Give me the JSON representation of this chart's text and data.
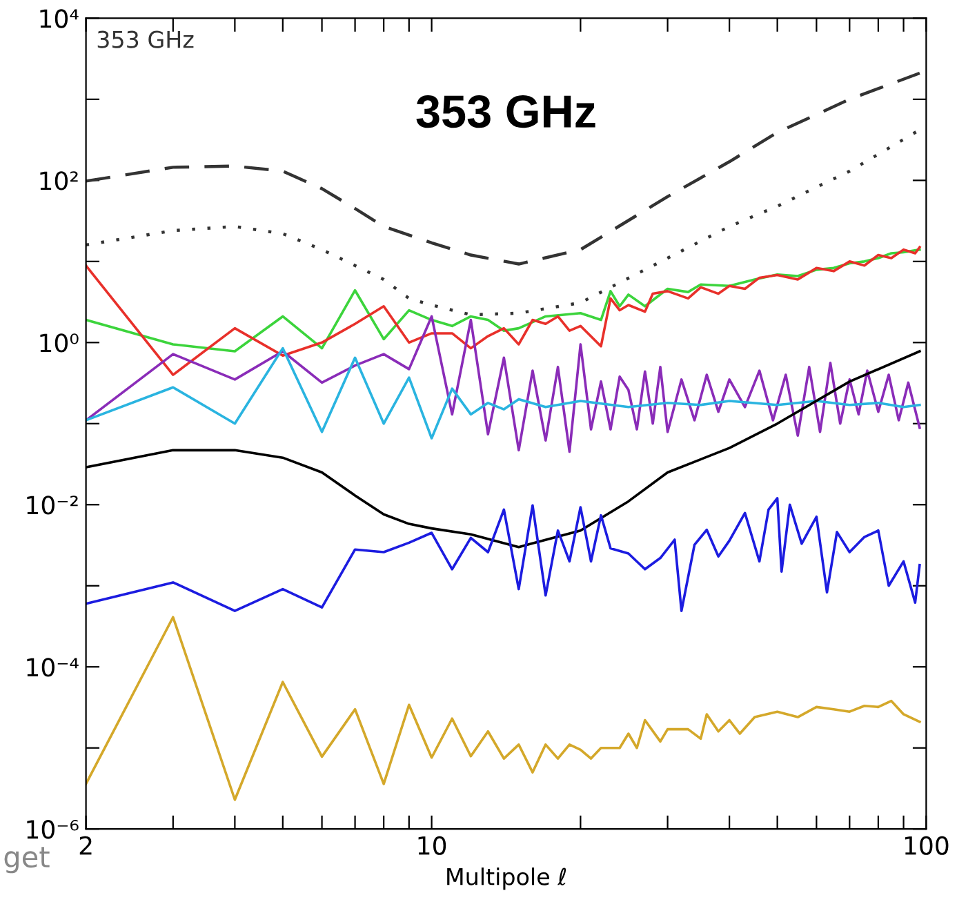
{
  "chart_data": {
    "type": "line",
    "title": "353 GHz",
    "xlabel": "Multipole ℓ",
    "annotations": [
      "353 GHz",
      "get"
    ],
    "log": "xy",
    "xlim": [
      2,
      100
    ],
    "ylim": [
      1e-06,
      10000
    ],
    "xticks": [
      2,
      {
        "value": 3,
        "label": null
      },
      {
        "value": 4,
        "label": null
      },
      {
        "value": 5,
        "label": null
      },
      {
        "value": 6,
        "label": null
      },
      {
        "value": 7,
        "label": null
      },
      {
        "value": 8,
        "label": null
      },
      {
        "value": 9,
        "label": null
      },
      10,
      {
        "value": 20,
        "label": null
      },
      {
        "value": 30,
        "label": null
      },
      {
        "value": 40,
        "label": null
      },
      {
        "value": 50,
        "label": null
      },
      {
        "value": 60,
        "label": null
      },
      {
        "value": 70,
        "label": null
      },
      {
        "value": 80,
        "label": null
      },
      {
        "value": 90,
        "label": null
      },
      100
    ],
    "yticks": [
      {
        "value": 1e-06,
        "label": "10⁻⁶"
      },
      {
        "value": 1e-05,
        "label": null
      },
      {
        "value": 0.0001,
        "label": "10⁻⁴"
      },
      {
        "value": 0.001,
        "label": null
      },
      {
        "value": 0.01,
        "label": "10⁻²"
      },
      {
        "value": 0.1,
        "label": null
      },
      {
        "value": 1,
        "label": "10⁰"
      },
      {
        "value": 10,
        "label": null
      },
      {
        "value": 100,
        "label": "10²"
      },
      {
        "value": 1000,
        "label": null
      },
      {
        "value": 10000,
        "label": "10⁴"
      }
    ],
    "grid": false,
    "legend": false,
    "marker": "none",
    "series": [
      {
        "color": "#333333",
        "line_style": "dashed",
        "x": [
          2,
          3,
          4,
          5,
          6,
          7,
          8,
          10,
          12,
          15,
          20,
          30,
          40,
          50,
          70,
          97
        ],
        "values": [
          98,
          145,
          150,
          130,
          79,
          45,
          27,
          17,
          12,
          9.3,
          14,
          63,
          170,
          390,
          1000,
          2100
        ]
      },
      {
        "color": "#333333",
        "line_style": "dotted",
        "x": [
          2,
          3,
          4,
          5,
          6,
          7,
          8,
          9,
          10,
          12,
          15,
          20,
          30,
          40,
          50,
          70,
          97
        ],
        "values": [
          16,
          24,
          27,
          22,
          14,
          8.9,
          6.0,
          3.5,
          2.9,
          2.2,
          2.3,
          3.1,
          11,
          27,
          48,
          130,
          420
        ]
      },
      {
        "color": "#3cd43c",
        "line_style": "solid",
        "x": [
          2,
          3,
          4,
          5,
          6,
          7,
          8,
          9,
          10,
          11,
          12,
          13,
          14,
          15,
          17,
          20,
          22,
          23,
          24,
          25,
          27,
          30,
          33,
          35,
          40,
          45,
          50,
          55,
          60,
          65,
          70,
          75,
          80,
          85,
          90,
          97
        ],
        "values": [
          1.9,
          0.95,
          0.78,
          2.1,
          0.85,
          4.4,
          1.1,
          2.5,
          1.9,
          1.6,
          2.1,
          1.9,
          1.4,
          1.5,
          2.1,
          2.3,
          1.9,
          4.3,
          2.8,
          3.9,
          2.8,
          4.6,
          4.2,
          5.2,
          5.0,
          6.0,
          6.9,
          6.6,
          7.9,
          8.3,
          9.5,
          10,
          11,
          12.6,
          13,
          14
        ]
      },
      {
        "color": "#e8302a",
        "line_style": "solid",
        "x": [
          2,
          3,
          4,
          5,
          6,
          7,
          8,
          9,
          10,
          11,
          12,
          13,
          14,
          15,
          16,
          17,
          18,
          19,
          20,
          22,
          23,
          24,
          25,
          27,
          28,
          30,
          33,
          35,
          38,
          40,
          43,
          46,
          50,
          55,
          60,
          65,
          70,
          75,
          80,
          85,
          90,
          95,
          97
        ],
        "values": [
          8.9,
          0.4,
          1.5,
          0.69,
          1.0,
          1.7,
          2.8,
          1.0,
          1.3,
          1.3,
          0.85,
          1.2,
          1.5,
          0.95,
          1.9,
          1.7,
          2.1,
          1.4,
          1.6,
          0.9,
          3.5,
          2.5,
          2.9,
          2.4,
          4.0,
          4.3,
          3.5,
          4.8,
          4.0,
          5.0,
          4.6,
          6.3,
          6.8,
          6.0,
          8.3,
          7.6,
          10,
          8.9,
          12,
          11,
          14,
          12.6,
          15
        ]
      },
      {
        "color": "#8a2cb8",
        "line_style": "solid",
        "x": [
          2,
          3,
          4,
          5,
          6,
          7,
          8,
          9,
          10,
          11,
          12,
          13,
          14,
          15,
          16,
          17,
          18,
          19,
          20,
          21,
          22,
          23,
          24,
          25,
          26,
          27,
          28,
          29,
          30,
          32,
          34,
          36,
          38,
          40,
          43,
          46,
          49,
          52,
          55,
          58,
          61,
          64,
          67,
          70,
          73,
          76,
          80,
          84,
          88,
          92,
          97
        ],
        "values": [
          0.11,
          0.72,
          0.35,
          0.78,
          0.32,
          0.52,
          0.72,
          0.47,
          2.1,
          0.13,
          1.9,
          0.074,
          0.65,
          0.047,
          0.45,
          0.062,
          0.5,
          0.045,
          0.95,
          0.085,
          0.33,
          0.085,
          0.38,
          0.26,
          0.085,
          0.44,
          0.1,
          0.5,
          0.079,
          0.35,
          0.11,
          0.4,
          0.14,
          0.35,
          0.16,
          0.45,
          0.11,
          0.4,
          0.071,
          0.5,
          0.079,
          0.56,
          0.1,
          0.35,
          0.13,
          0.45,
          0.14,
          0.4,
          0.11,
          0.32,
          0.089
        ]
      },
      {
        "color": "#2ab4e0",
        "line_style": "solid",
        "x": [
          2,
          3,
          4,
          5,
          6,
          7,
          8,
          9,
          10,
          11,
          12,
          13,
          14,
          15,
          17,
          20,
          25,
          30,
          35,
          40,
          50,
          60,
          70,
          80,
          90,
          97
        ],
        "values": [
          0.11,
          0.28,
          0.1,
          0.85,
          0.079,
          0.65,
          0.1,
          0.37,
          0.066,
          0.27,
          0.13,
          0.18,
          0.15,
          0.2,
          0.16,
          0.19,
          0.16,
          0.18,
          0.17,
          0.19,
          0.17,
          0.19,
          0.17,
          0.18,
          0.16,
          0.17
        ]
      },
      {
        "color": "#000000",
        "line_style": "solid",
        "x": [
          2,
          3,
          4,
          5,
          6,
          7,
          8,
          9,
          10,
          12,
          15,
          20,
          25,
          30,
          40,
          50,
          70,
          97
        ],
        "values": [
          0.029,
          0.047,
          0.047,
          0.038,
          0.025,
          0.013,
          0.0076,
          0.0058,
          0.0051,
          0.0043,
          0.003,
          0.0048,
          0.011,
          0.025,
          0.05,
          0.1,
          0.33,
          0.78
        ]
      },
      {
        "color": "#1c1ce0",
        "line_style": "solid",
        "x": [
          2,
          3,
          4,
          5,
          6,
          7,
          8,
          9,
          10,
          11,
          12,
          13,
          14,
          15,
          16,
          17,
          18,
          19,
          20,
          21,
          22,
          23,
          25,
          27,
          29,
          31,
          32,
          34,
          36,
          38,
          40,
          43,
          46,
          48,
          50,
          51,
          53,
          56,
          60,
          63,
          66,
          70,
          75,
          80,
          84,
          90,
          95,
          97
        ],
        "values": [
          0.0006,
          0.0011,
          0.00049,
          0.00091,
          0.00054,
          0.0028,
          0.0026,
          0.0034,
          0.0045,
          0.0016,
          0.0039,
          0.0026,
          0.0087,
          0.00091,
          0.0098,
          0.00076,
          0.0048,
          0.002,
          0.0093,
          0.002,
          0.0074,
          0.0029,
          0.0025,
          0.0016,
          0.0022,
          0.0037,
          0.00049,
          0.0032,
          0.0049,
          0.0023,
          0.0036,
          0.0079,
          0.002,
          0.0087,
          0.012,
          0.0015,
          0.01,
          0.0033,
          0.0071,
          0.00083,
          0.0046,
          0.0026,
          0.004,
          0.0048,
          0.001,
          0.002,
          0.00062,
          0.0018
        ]
      },
      {
        "color": "#d4a82a",
        "line_style": "solid",
        "x": [
          2,
          3,
          4,
          5,
          6,
          7,
          8,
          9,
          10,
          11,
          12,
          13,
          14,
          15,
          16,
          17,
          18,
          19,
          20,
          21,
          22,
          24,
          25,
          26,
          27,
          29,
          30,
          33,
          35,
          36,
          38,
          40,
          42,
          45,
          50,
          55,
          60,
          65,
          70,
          75,
          80,
          85,
          90,
          97
        ],
        "values": [
          3.6e-06,
          0.00041,
          2.3e-06,
          6.5e-05,
          7.8e-06,
          3e-05,
          3.6e-06,
          3.4e-05,
          7.6e-06,
          2.3e-05,
          7.9e-06,
          1.6e-05,
          7.4e-06,
          1.1e-05,
          5e-06,
          1.1e-05,
          7.4e-06,
          1.1e-05,
          9.5e-06,
          7.4e-06,
          1e-05,
          1e-05,
          1.5e-05,
          1e-05,
          2.2e-05,
          1.2e-05,
          1.7e-05,
          1.7e-05,
          1.3e-05,
          2.6e-05,
          1.6e-05,
          2.2e-05,
          1.5e-05,
          2.4e-05,
          2.8e-05,
          2.4e-05,
          3.2e-05,
          3e-05,
          2.8e-05,
          3.3e-05,
          3.2e-05,
          3.8e-05,
          2.6e-05,
          2.1e-05
        ]
      }
    ]
  }
}
